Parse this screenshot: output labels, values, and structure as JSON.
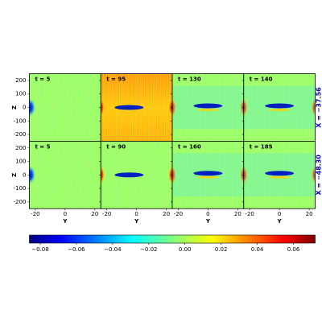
{
  "chart_data": {
    "type": "heatmap",
    "xlabel": "Y",
    "ylabel": "Z",
    "xlim": [
      -24,
      24
    ],
    "ylim": [
      -250,
      250
    ],
    "xticks": [
      -20,
      0,
      20
    ],
    "yticks": [
      200,
      100,
      0,
      -100,
      -200
    ],
    "rows": [
      {
        "label": "X = −37.56",
        "panels": [
          {
            "title": "t = 5"
          },
          {
            "title": "t = 95"
          },
          {
            "title": "t = 130"
          },
          {
            "title": "t = 140"
          }
        ]
      },
      {
        "label": "X = −48.30",
        "panels": [
          {
            "title": "t = 5"
          },
          {
            "title": "t = 90"
          },
          {
            "title": "t = 160"
          },
          {
            "title": "t = 185"
          }
        ]
      }
    ],
    "colorbar": {
      "clim": [
        -0.086,
        0.072
      ],
      "ticks": [
        {
          "value": -0.08,
          "label": "−0.08"
        },
        {
          "value": -0.06,
          "label": "−0.06"
        },
        {
          "value": -0.04,
          "label": "−0.04"
        },
        {
          "value": -0.02,
          "label": "−0.02"
        },
        {
          "value": 0,
          "label": "0.00"
        },
        0.02,
        0.04,
        0.06
      ]
    }
  }
}
